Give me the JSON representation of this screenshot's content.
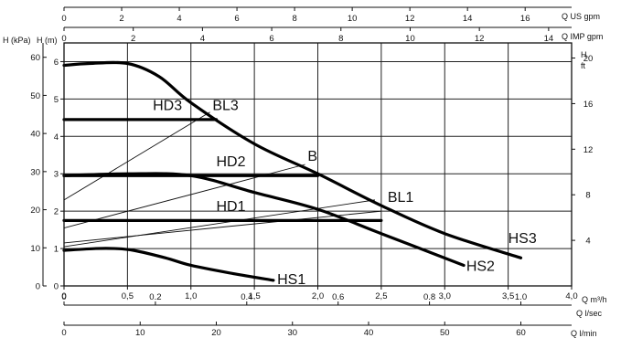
{
  "chart_data": {
    "type": "line",
    "title": "",
    "xlabel": "Q m³/h",
    "x_range": [
      0,
      4
    ],
    "x_ticks": [
      0,
      0.5,
      1,
      1.5,
      2,
      2.5,
      3,
      3.5,
      4
    ],
    "x_tick_labels": [
      "0",
      "0,5",
      "1,0",
      "1,5",
      "2,0",
      "2,5",
      "3,0",
      "3,5",
      "4,0"
    ],
    "y_range": [
      0,
      6.5
    ],
    "y_ticks": [
      0,
      1,
      2,
      3,
      4,
      5,
      6
    ],
    "axes": {
      "y_kpa": {
        "label": "H (kPa)",
        "ticks": [
          0,
          10,
          20,
          30,
          40,
          50,
          60
        ]
      },
      "y_m": {
        "label": "H (m)",
        "ticks": [
          0,
          1,
          2,
          3,
          4,
          5,
          6
        ]
      },
      "y_ft": {
        "label": "H",
        "sublabel": "ft",
        "ticks": [
          4,
          8,
          12,
          16,
          20
        ]
      },
      "top_us": {
        "label": "Q US gpm",
        "ticks": [
          0,
          2,
          4,
          6,
          8,
          10,
          12,
          14,
          16
        ]
      },
      "top_imp": {
        "label": "Q IMP gpm",
        "ticks": [
          0,
          2,
          4,
          6,
          8,
          10,
          12,
          14
        ]
      },
      "bottom_ls": {
        "label": "Q l/sec",
        "ticks": [
          "0",
          "0.2",
          "0.4",
          "0.6",
          "0.8",
          "1.0"
        ]
      },
      "bottom_lmin": {
        "label": "Q l/min",
        "ticks": [
          0,
          10,
          20,
          30,
          40,
          50,
          60
        ]
      }
    },
    "grid": true,
    "series": [
      {
        "name": "HS3",
        "x": [
          0,
          0.2,
          0.5,
          0.75,
          1.0,
          1.5,
          2.0,
          2.5,
          3.0,
          3.6
        ],
        "y": [
          5.9,
          5.95,
          5.95,
          5.6,
          4.9,
          3.8,
          3.0,
          2.15,
          1.4,
          0.75
        ]
      },
      {
        "name": "HS2",
        "x": [
          0,
          0.5,
          1.0,
          1.5,
          2.0,
          2.5,
          3.15
        ],
        "y": [
          2.95,
          3.0,
          2.95,
          2.5,
          2.05,
          1.4,
          0.55
        ]
      },
      {
        "name": "HS1",
        "x": [
          0,
          0.25,
          0.4,
          0.55,
          0.8,
          1.0,
          1.3,
          1.65
        ],
        "y": [
          0.95,
          1.0,
          1.0,
          0.95,
          0.75,
          0.55,
          0.35,
          0.15
        ]
      },
      {
        "name": "HD3",
        "x": [
          0,
          1.2
        ],
        "y": [
          4.45,
          4.45
        ]
      },
      {
        "name": "HD2",
        "x": [
          0,
          2.0
        ],
        "y": [
          2.95,
          2.95
        ]
      },
      {
        "name": "HD1",
        "x": [
          0,
          2.5
        ],
        "y": [
          1.75,
          1.75
        ]
      }
    ],
    "system_curves": [
      {
        "name": "BL3",
        "x": [
          0,
          1.15
        ],
        "y": [
          2.3,
          4.65
        ]
      },
      {
        "name": "B",
        "x": [
          0,
          1.9
        ],
        "y": [
          1.55,
          3.25
        ]
      },
      {
        "name": "BL1",
        "x": [
          0,
          2.45
        ],
        "y": [
          1.05,
          2.3
        ]
      },
      {
        "name": "",
        "x": [
          0,
          2.5
        ],
        "y": [
          1.15,
          2.0
        ]
      }
    ],
    "annotations": [
      {
        "text": "HD3",
        "x": 0.7,
        "y": 4.7
      },
      {
        "text": "BL3",
        "x": 1.17,
        "y": 4.7
      },
      {
        "text": "HD2",
        "x": 1.2,
        "y": 3.2
      },
      {
        "text": "B",
        "x": 1.92,
        "y": 3.35
      },
      {
        "text": "BL1",
        "x": 2.55,
        "y": 2.25
      },
      {
        "text": "HD1",
        "x": 1.2,
        "y": 2.0
      },
      {
        "text": "HS3",
        "x": 3.5,
        "y": 1.15
      },
      {
        "text": "HS2",
        "x": 3.17,
        "y": 0.4
      },
      {
        "text": "HS1",
        "x": 1.68,
        "y": 0.05
      }
    ]
  }
}
